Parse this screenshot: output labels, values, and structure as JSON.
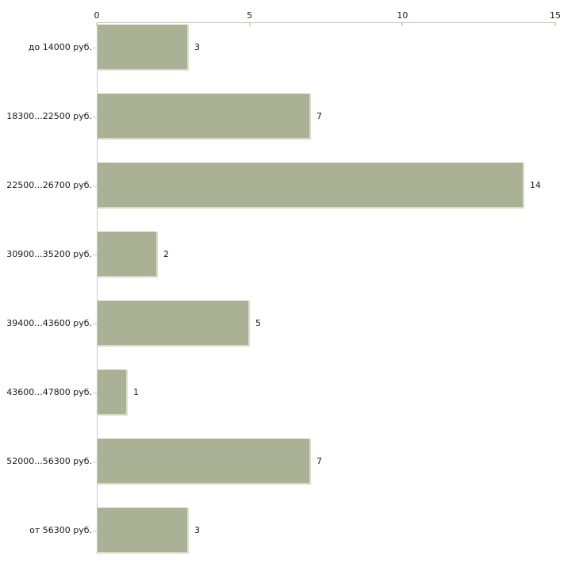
{
  "chart_data": {
    "type": "bar",
    "orientation": "horizontal",
    "title": "",
    "xlabel": "",
    "ylabel": "",
    "categories": [
      "до 14000 руб.",
      "18300...22500 руб.",
      "22500...26700 руб.",
      "30900...35200 руб.",
      "39400...43600 руб.",
      "43600...47800 руб.",
      "52000...56300 руб.",
      "от 56300 руб."
    ],
    "values": [
      3,
      7,
      14,
      2,
      5,
      1,
      7,
      3
    ],
    "value_labels": [
      "3",
      "7",
      "14",
      "2",
      "5",
      "1",
      "7",
      "3"
    ],
    "xlim": [
      0,
      15
    ],
    "x_ticks": [
      "0",
      "5",
      "10",
      "15"
    ],
    "grid": false,
    "legend": false,
    "legend_position": "none"
  },
  "style": {
    "background": "#ffffff",
    "bar_color": "#aab194",
    "bar_edge_color": "#d9dcc8",
    "axis_line_color": "#c9c9c9",
    "x_tick_color": "#d5d8b4",
    "text_color": "#1a1a1a"
  }
}
